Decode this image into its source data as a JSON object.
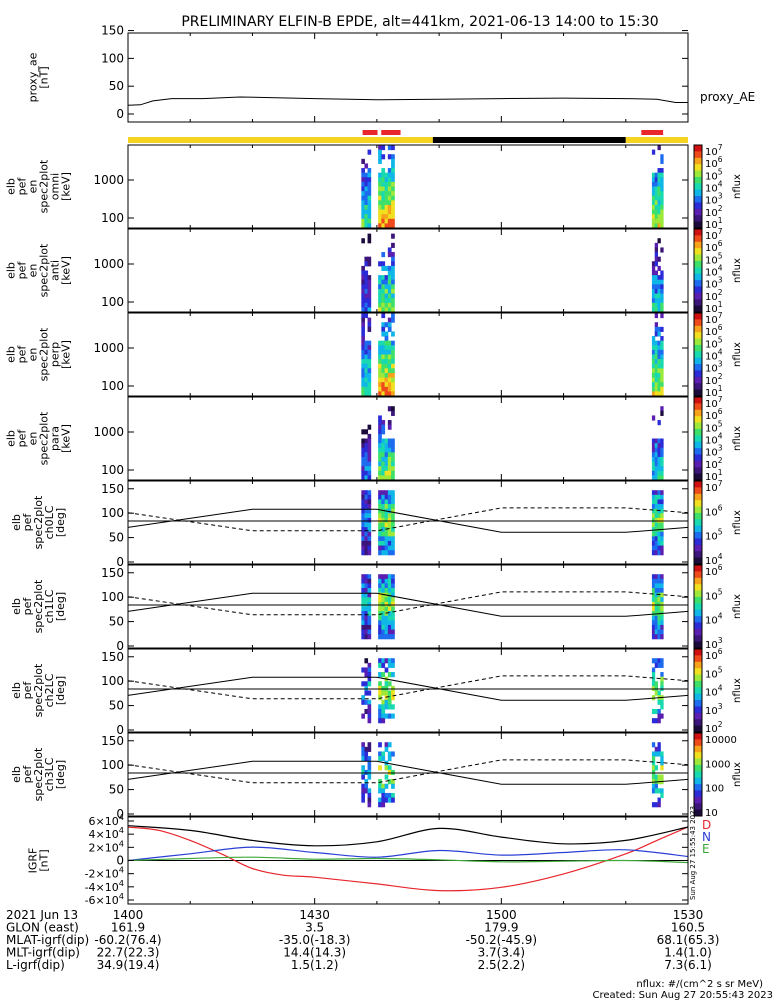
{
  "title": "PRELIMINARY ELFIN-B EPDE, alt=441km, 2021-06-13 14:00 to 15:30",
  "time_ticks": [
    "1400",
    "1430",
    "1500",
    "1530"
  ],
  "panels": [
    {
      "id": "ae",
      "ylabel": [
        "proxy_ae",
        "[nT]"
      ],
      "yticks": [
        "0",
        "50",
        "100",
        "150"
      ],
      "right_label": "proxy_AE"
    },
    {
      "id": "omni",
      "ylabel": [
        "elb",
        "pef",
        "en",
        "spec2plot",
        "omni",
        "[keV]"
      ],
      "yticks": [
        "100",
        "1000"
      ],
      "cbar_label": "nflux",
      "cbar_ticks": [
        "10^7",
        "10^6",
        "10^5",
        "10^4",
        "10^3",
        "10^2",
        "10^1"
      ]
    },
    {
      "id": "anti",
      "ylabel": [
        "elb",
        "pef",
        "en",
        "spec2plot",
        "anti",
        "[keV]"
      ],
      "yticks": [
        "100",
        "1000"
      ],
      "cbar_label": "nflux",
      "cbar_ticks": [
        "10^7",
        "10^6",
        "10^5",
        "10^4",
        "10^3",
        "10^2",
        "10^1"
      ]
    },
    {
      "id": "perp",
      "ylabel": [
        "elb",
        "pef",
        "en",
        "spec2plot",
        "perp",
        "[keV]"
      ],
      "yticks": [
        "100",
        "1000"
      ],
      "cbar_label": "nflux",
      "cbar_ticks": [
        "10^7",
        "10^6",
        "10^5",
        "10^4",
        "10^3",
        "10^2",
        "10^1"
      ]
    },
    {
      "id": "para",
      "ylabel": [
        "elb",
        "pef",
        "en",
        "spec2plot",
        "para",
        "[keV]"
      ],
      "yticks": [
        "100",
        "1000"
      ],
      "cbar_label": "nflux",
      "cbar_ticks": [
        "10^7",
        "10^6",
        "10^5",
        "10^4",
        "10^3",
        "10^2",
        "10^1"
      ]
    },
    {
      "id": "ch0",
      "ylabel": [
        "elb",
        "pef",
        "spec2plot",
        "ch0LC",
        "[deg]"
      ],
      "yticks": [
        "0",
        "50",
        "100",
        "150"
      ],
      "cbar_label": "nflux",
      "cbar_ticks": [
        "10^7",
        "10^6",
        "10^5",
        "10^4"
      ]
    },
    {
      "id": "ch1",
      "ylabel": [
        "elb",
        "pef",
        "spec2plot",
        "ch1LC",
        "[deg]"
      ],
      "yticks": [
        "0",
        "50",
        "100",
        "150"
      ],
      "cbar_label": "nflux",
      "cbar_ticks": [
        "10^6",
        "10^5",
        "10^4",
        "10^3"
      ]
    },
    {
      "id": "ch2",
      "ylabel": [
        "elb",
        "pef",
        "spec2plot",
        "ch2LC",
        "[deg]"
      ],
      "yticks": [
        "0",
        "50",
        "100",
        "150"
      ],
      "cbar_label": "nflux",
      "cbar_ticks": [
        "10^6",
        "10^5",
        "10^4",
        "10^3",
        "10^2"
      ]
    },
    {
      "id": "ch3",
      "ylabel": [
        "elb",
        "pef",
        "spec2plot",
        "ch3LC",
        "[deg]"
      ],
      "yticks": [
        "0",
        "50",
        "100",
        "150"
      ],
      "cbar_label": "nflux",
      "cbar_ticks": [
        "10000",
        "1000",
        "100",
        "10"
      ]
    },
    {
      "id": "igrf",
      "ylabel": [
        "IGRF",
        "[nT]"
      ],
      "yticks": [
        "6×10^4",
        "4×10^4",
        "2×10^4",
        "0",
        "-2×10^4",
        "-4×10^4",
        "-6×10^4"
      ],
      "right_labels": [
        {
          "t": "D",
          "c": "#e8262c"
        },
        {
          "t": "N",
          "c": "#2a3fd6"
        },
        {
          "t": "E",
          "c": "#3ea83a"
        }
      ]
    }
  ],
  "footer_rows": [
    {
      "label": "2021 Jun 13",
      "values": [
        "1400",
        "1430",
        "1500",
        "1530"
      ]
    },
    {
      "label": "GLON (east)",
      "values": [
        "161.9",
        "3.5",
        "179.9",
        "160.5"
      ]
    },
    {
      "label": "MLAT-igrf(dip)",
      "values": [
        "-60.2(76.4)",
        "-35.0(-18.3)",
        "-50.2(-45.9)",
        "68.1(65.3)"
      ]
    },
    {
      "label": "MLT-igrf(dip)",
      "values": [
        "22.7(22.3)",
        "14.4(14.3)",
        "3.7(3.4)",
        "1.4(1.0)"
      ]
    },
    {
      "label": "L-igrf(dip)",
      "values": [
        "34.9(19.4)",
        "1.5(1.2)",
        "2.5(2.2)",
        "7.3(6.1)"
      ]
    }
  ],
  "footnote": [
    "nflux: #/(cm^2 s sr MeV)",
    "Created: Sun Aug 27 20:55:43 2023"
  ],
  "sidebar_stamp": "Sun Aug 27 15:55:43 2023",
  "colors": {
    "sunlit": "#f5d31f",
    "eclipse": "#000000",
    "science_bar": "#e8262c"
  },
  "chart_data": [
    {
      "type": "line",
      "title": "PRELIMINARY ELFIN-B EPDE, alt=441km, 2021-06-13 14:00 to 15:30",
      "ylabel": "proxy_ae [nT]",
      "ylim": [
        0,
        160
      ],
      "series": [
        {
          "name": "proxy_AE",
          "x": [
            0,
            2,
            4,
            7,
            12,
            18,
            22,
            30,
            40,
            50,
            60,
            70,
            80,
            85,
            88,
            90
          ],
          "values": [
            30,
            31,
            38,
            42,
            42,
            45,
            44,
            42,
            40,
            41,
            42,
            43,
            42,
            41,
            35,
            35
          ]
        }
      ]
    },
    {
      "type": "line",
      "ylabel": "IGRF [nT]",
      "ylim": [
        -60000,
        60000
      ],
      "series": [
        {
          "name": "D",
          "x": [
            0,
            5,
            10,
            15,
            20,
            25,
            30,
            40,
            50,
            60,
            70,
            80,
            85,
            90
          ],
          "values": [
            50000,
            45000,
            30000,
            10000,
            -12000,
            -22000,
            -25000,
            -35000,
            -45000,
            -40000,
            -20000,
            10000,
            30000,
            50000
          ]
        },
        {
          "name": "N",
          "x": [
            0,
            10,
            20,
            30,
            40,
            50,
            60,
            70,
            80,
            90
          ],
          "values": [
            0,
            10000,
            20000,
            12000,
            5000,
            15000,
            8000,
            12000,
            16000,
            6000
          ]
        },
        {
          "name": "E",
          "x": [
            0,
            10,
            20,
            30,
            40,
            50,
            60,
            70,
            80,
            90
          ],
          "values": [
            0,
            3000,
            5000,
            2000,
            3000,
            1000,
            -2000,
            -1000,
            0,
            -3000
          ]
        },
        {
          "name": "total",
          "x": [
            0,
            10,
            20,
            30,
            40,
            50,
            60,
            70,
            80,
            90
          ],
          "values": [
            52000,
            45000,
            30000,
            22000,
            28000,
            48000,
            35000,
            25000,
            30000,
            50000
          ]
        }
      ]
    }
  ]
}
